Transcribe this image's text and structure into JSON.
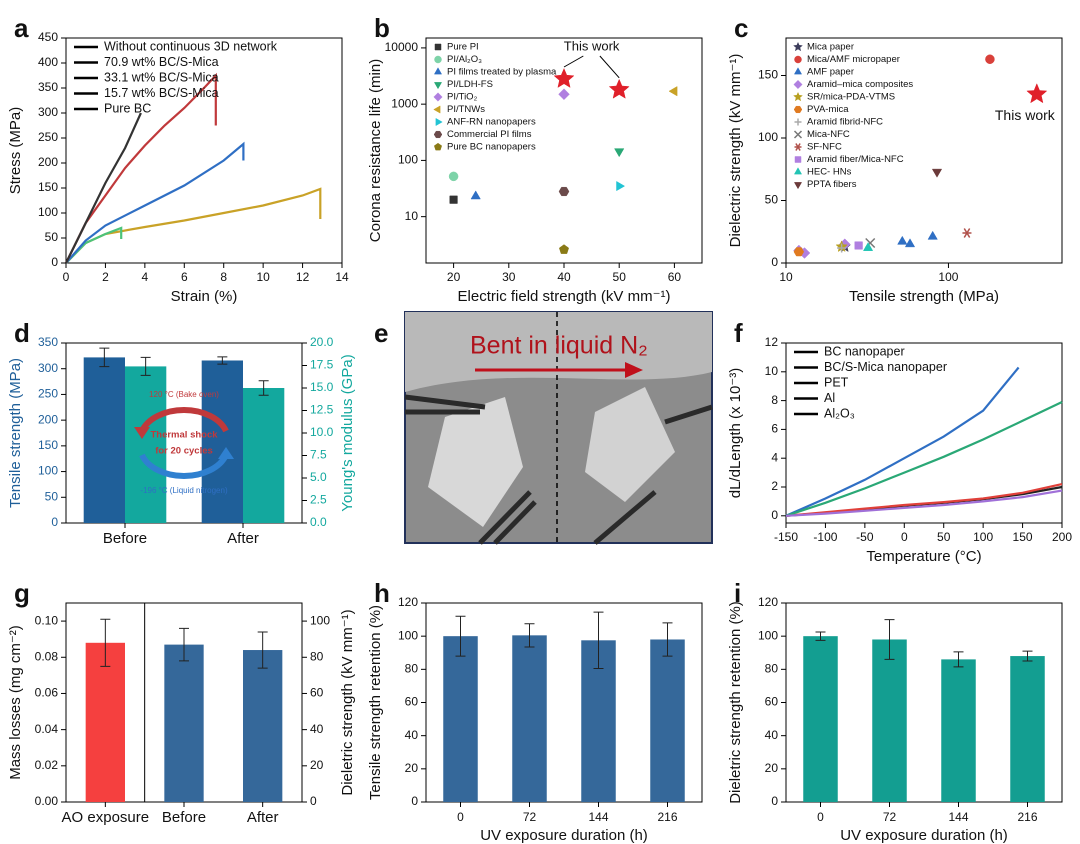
{
  "chart_data": [
    {
      "type": "line",
      "label": "a",
      "xlabel": "Strain (%)",
      "ylabel": "Stress (MPa)",
      "legend": "upper left",
      "xlim": [
        0,
        14
      ],
      "xticks": [
        0,
        2,
        4,
        6,
        8,
        10,
        12,
        14
      ],
      "ylim": [
        0,
        450
      ],
      "yticks": [
        0,
        50,
        100,
        150,
        200,
        250,
        300,
        350,
        400,
        450
      ],
      "series": [
        {
          "name": "Without continuous 3D network",
          "color": "#c9a227",
          "x": [
            0,
            1,
            2,
            4,
            6,
            8,
            10,
            12,
            12.9,
            12.9
          ],
          "values": [
            0,
            40,
            58,
            72,
            85,
            100,
            115,
            135,
            148,
            88
          ]
        },
        {
          "name": "70.9 wt% BC/S-Mica",
          "color": "#4cc37a",
          "x": [
            0,
            0.5,
            1,
            2,
            2.8,
            2.8
          ],
          "values": [
            0,
            20,
            40,
            58,
            70,
            48
          ]
        },
        {
          "name": "33.1 wt% BC/S-Mica",
          "color": "#2f6fc4",
          "x": [
            0,
            1,
            2,
            4,
            6,
            8,
            9,
            9
          ],
          "values": [
            0,
            45,
            75,
            115,
            155,
            205,
            238,
            205
          ]
        },
        {
          "name": "15.7 wt% BC/S-Mica",
          "color": "#c0393b",
          "x": [
            0,
            1,
            2,
            3,
            4,
            5,
            6,
            7,
            7.6,
            7.6
          ],
          "values": [
            0,
            80,
            135,
            190,
            235,
            275,
            310,
            350,
            375,
            275
          ]
        },
        {
          "name": "Pure BC",
          "color": "#333333",
          "x": [
            0,
            1,
            2,
            3,
            3.8
          ],
          "values": [
            0,
            80,
            160,
            230,
            300
          ]
        }
      ]
    },
    {
      "type": "scatter",
      "label": "b",
      "xlabel": "Electric field strength (kV mm⁻¹)",
      "ylabel": "Corona resistance life (min)",
      "legend": "upper left",
      "xlim": [
        15,
        65
      ],
      "xticks": [
        20,
        30,
        40,
        50,
        60
      ],
      "ylim": [
        1.5,
        15000
      ],
      "ylog": true,
      "yticks": [
        10,
        100,
        1000,
        10000
      ],
      "series": [
        {
          "name": "Pure PI",
          "color": "#333333",
          "marker": "square",
          "x": [
            20
          ],
          "values": [
            20
          ]
        },
        {
          "name": "PI/Al₂O₃",
          "color": "#7dd3a8",
          "marker": "circle",
          "x": [
            20
          ],
          "values": [
            52
          ]
        },
        {
          "name": "PI films treated by plasma",
          "color": "#2f6fc4",
          "marker": "triangle-up",
          "x": [
            24
          ],
          "values": [
            23
          ]
        },
        {
          "name": "PI/LDH-FS",
          "color": "#2aa876",
          "marker": "triangle-down",
          "x": [
            50
          ],
          "values": [
            145
          ]
        },
        {
          "name": "PI/TiO₂",
          "color": "#b07fe0",
          "marker": "diamond",
          "x": [
            40
          ],
          "values": [
            1500
          ]
        },
        {
          "name": "PI/TNWs",
          "color": "#c9a227",
          "marker": "triangle-left",
          "x": [
            60
          ],
          "values": [
            1700
          ]
        },
        {
          "name": "ANF-RN nanopapers",
          "color": "#22c4d4",
          "marker": "triangle-right",
          "x": [
            50
          ],
          "values": [
            35
          ]
        },
        {
          "name": "Commercial PI films",
          "color": "#6b4a4a",
          "marker": "hexagon",
          "x": [
            40
          ],
          "values": [
            28
          ]
        },
        {
          "name": "Pure BC nanopapers",
          "color": "#8a7a16",
          "marker": "pentagon",
          "x": [
            40
          ],
          "values": [
            2.6
          ]
        }
      ],
      "highlight": {
        "label": "This work",
        "color": "#e0202a",
        "marker": "star",
        "x": [
          40,
          50
        ],
        "values": [
          2800,
          1800
        ]
      }
    },
    {
      "type": "scatter",
      "label": "c",
      "xlabel": "Tensile strength (MPa)",
      "ylabel": "Dielectric strength (kV mm⁻¹)",
      "legend": "upper left",
      "xlim": [
        10,
        500
      ],
      "xlog": true,
      "xticks": [
        10,
        100
      ],
      "ylim": [
        0,
        180
      ],
      "yticks": [
        0,
        50,
        100,
        150
      ],
      "series": [
        {
          "name": "Mica paper",
          "color": "#3d3d5c",
          "marker": "star",
          "x": [
            23
          ],
          "values": [
            13
          ]
        },
        {
          "name": "Mica/AMF micropaper",
          "color": "#d9403a",
          "marker": "circle",
          "x": [
            180
          ],
          "values": [
            163
          ]
        },
        {
          "name": "AMF paper",
          "color": "#2f6fc4",
          "marker": "triangle-up",
          "x": [
            52,
            58,
            80
          ],
          "values": [
            17,
            15,
            21
          ]
        },
        {
          "name": "Aramid–mica composites",
          "color": "#b07fe0",
          "marker": "diamond",
          "x": [
            12,
            13,
            23
          ],
          "values": [
            10,
            8,
            15
          ]
        },
        {
          "name": "SR/mica-PDA-VTMS",
          "color": "#b8a020",
          "marker": "star",
          "x": [
            22
          ],
          "values": [
            13
          ]
        },
        {
          "name": "PVA-mica",
          "color": "#e07a20",
          "marker": "hexagon",
          "x": [
            12
          ],
          "values": [
            9
          ]
        },
        {
          "name": "Aramid fibrid-NFC",
          "color": "#aaaaaa",
          "marker": "plus",
          "x": [
            22
          ],
          "values": [
            12
          ]
        },
        {
          "name": "Mica-NFC",
          "color": "#777777",
          "marker": "x",
          "x": [
            33
          ],
          "values": [
            16
          ]
        },
        {
          "name": "SF-NFC",
          "color": "#b0504a",
          "marker": "asterisk",
          "x": [
            130
          ],
          "values": [
            24
          ]
        },
        {
          "name": "Aramid fiber/Mica-NFC",
          "color": "#b07fe0",
          "marker": "square",
          "x": [
            28
          ],
          "values": [
            14
          ]
        },
        {
          "name": "HEC- HNs",
          "color": "#22c4b4",
          "marker": "triangle-up",
          "x": [
            32
          ],
          "values": [
            12
          ]
        },
        {
          "name": "PPTA fibers",
          "color": "#6b3a3a",
          "marker": "triangle-down",
          "x": [
            85
          ],
          "values": [
            73
          ]
        }
      ],
      "highlight": {
        "label": "This work",
        "color": "#e0202a",
        "marker": "star",
        "x": [
          350
        ],
        "values": [
          135
        ]
      }
    },
    {
      "type": "bar",
      "label": "d",
      "ylabel": "Tensile strength (MPa)",
      "y2label": "Young's modulus (GPa)",
      "color_axes": true,
      "categories": [
        "Before",
        "After"
      ],
      "ylim": [
        0,
        350
      ],
      "yticks": [
        0,
        50,
        100,
        150,
        200,
        250,
        300,
        350
      ],
      "y2lim": [
        0,
        20
      ],
      "y2ticks": [
        {
          "value": 0,
          "label": "0.0"
        },
        2.5,
        {
          "value": 5,
          "label": "5.0"
        },
        7.5,
        {
          "value": 10,
          "label": "10.0"
        },
        12.5,
        {
          "value": 15,
          "label": "15.0"
        },
        17.5,
        {
          "value": 20,
          "label": "20.0"
        }
      ],
      "series": [
        {
          "name": "Tensile strength",
          "color": "#1f5f99",
          "values": [
            322,
            316
          ],
          "errors": [
            18,
            7
          ]
        },
        {
          "name": "Young's modulus",
          "color": "#13a89e",
          "axis": "y2",
          "values": [
            17.4,
            15.0
          ],
          "errors": [
            1.0,
            0.8
          ]
        }
      ],
      "cycle_note": {
        "top": "120 °C (Bake oven)",
        "lines": [
          "Thermal shock",
          "for 20 cycles"
        ],
        "bottom": "-196 °C (Liquid nitrogen)"
      }
    },
    {
      "type": "photo",
      "label": "e",
      "annotation": "Bent in liquid N₂"
    },
    {
      "type": "line",
      "label": "f",
      "xlabel": "Temperature (°C)",
      "ylabel": "dL/dLength (x 10⁻³)",
      "legend": "upper left",
      "xlim": [
        -150,
        200
      ],
      "xticks": [
        -150,
        -100,
        -50,
        0,
        50,
        100,
        150,
        200
      ],
      "ylim": [
        -0.5,
        12
      ],
      "yticks": [
        0,
        2,
        4,
        6,
        8,
        10,
        12
      ],
      "series": [
        {
          "name": "BC nanopaper",
          "color": "#222222",
          "x": [
            -150,
            -100,
            -50,
            0,
            50,
            100,
            150,
            200
          ],
          "values": [
            0,
            0.2,
            0.45,
            0.7,
            0.9,
            1.15,
            1.5,
            2.0
          ]
        },
        {
          "name": "BC/S-Mica nanopaper",
          "color": "#e0403a",
          "x": [
            -150,
            -100,
            -50,
            0,
            50,
            100,
            150,
            200
          ],
          "values": [
            0,
            0.25,
            0.5,
            0.75,
            0.95,
            1.2,
            1.6,
            2.2
          ]
        },
        {
          "name": "PET",
          "color": "#2f6fc4",
          "x": [
            -150,
            -100,
            -50,
            0,
            50,
            100,
            145
          ],
          "values": [
            0,
            1.2,
            2.5,
            4.0,
            5.5,
            7.3,
            10.3
          ]
        },
        {
          "name": "Al",
          "color": "#2aa876",
          "x": [
            -150,
            -100,
            -50,
            0,
            50,
            100,
            150,
            200
          ],
          "values": [
            0,
            0.9,
            1.9,
            3.0,
            4.1,
            5.3,
            6.6,
            7.9
          ]
        },
        {
          "name": "Al₂O₃",
          "color": "#a070d8",
          "x": [
            -150,
            -100,
            -50,
            0,
            50,
            100,
            150,
            200
          ],
          "values": [
            0,
            0.15,
            0.35,
            0.55,
            0.75,
            1.0,
            1.3,
            1.75
          ]
        }
      ]
    },
    {
      "type": "bar",
      "label": "g",
      "ylabel": "Mass losses (mg cm⁻²)",
      "y2label": "Dieletric strength (kV mm⁻¹)",
      "separator": true,
      "categories": [
        "AO exposure",
        "Before",
        "After"
      ],
      "ylim": [
        0,
        0.11
      ],
      "yticks": [
        {
          "value": 0,
          "label": "0.00"
        },
        0.02,
        0.04,
        0.06,
        0.08,
        {
          "value": 0.1,
          "label": "0.10"
        }
      ],
      "y2lim": [
        0,
        110
      ],
      "y2ticks": [
        0,
        20,
        40,
        60,
        80,
        100
      ],
      "series": [
        {
          "name": "Mass losses",
          "color": "#f5403f",
          "values": [
            0.088,
            null,
            null
          ],
          "errors": [
            0.013,
            null,
            null
          ]
        },
        {
          "name": "Dieletric strength",
          "color": "#35689a",
          "axis": "y2",
          "values": [
            null,
            87,
            84
          ],
          "errors": [
            null,
            9,
            10
          ]
        }
      ]
    },
    {
      "type": "bar",
      "label": "h",
      "xlabel": "UV exposure duration (h)",
      "ylabel": "Tensile strength retention (%)",
      "categories": [
        "0",
        "72",
        "144",
        "216"
      ],
      "ylim": [
        0,
        120
      ],
      "yticks": [
        0,
        20,
        40,
        60,
        80,
        100,
        120
      ],
      "series": [
        {
          "name": "Tensile strength retention",
          "color": "#35689a",
          "values": [
            100,
            100.5,
            97.5,
            98
          ],
          "errors": [
            12,
            7,
            17,
            10
          ]
        }
      ]
    },
    {
      "type": "bar",
      "label": "i",
      "xlabel": "UV exposure duration (h)",
      "ylabel": "Dieletric strength retention (%)",
      "categories": [
        "0",
        "72",
        "144",
        "216"
      ],
      "ylim": [
        0,
        120
      ],
      "yticks": [
        0,
        20,
        40,
        60,
        80,
        100,
        120
      ],
      "series": [
        {
          "name": "Dieletric strength retention",
          "color": "#139e91",
          "values": [
            100,
            98,
            86,
            88
          ],
          "errors": [
            2.5,
            12,
            4.5,
            3
          ]
        }
      ]
    }
  ]
}
